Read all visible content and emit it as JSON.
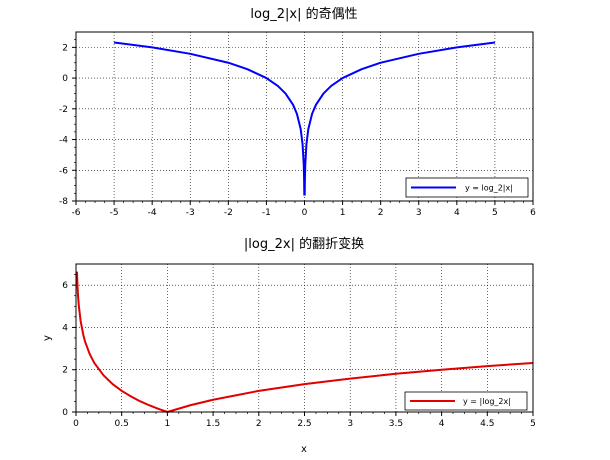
{
  "chart_data": [
    {
      "type": "line",
      "title": "log_2|x| 的奇偶性",
      "xlabel": "",
      "ylabel": "",
      "xlim": [
        -6,
        6
      ],
      "ylim": [
        -8,
        3
      ],
      "xticks": [
        -6,
        -5,
        -4,
        -3,
        -2,
        -1,
        0,
        1,
        2,
        3,
        4,
        5,
        6
      ],
      "xtick_labels": [
        "-6",
        "-5",
        "-4",
        "-3",
        "-2",
        "-1",
        "0",
        "1",
        "2",
        "3",
        "4",
        "5",
        "6"
      ],
      "yticks": [
        -8,
        -6,
        -4,
        -2,
        0,
        2
      ],
      "ytick_labels": [
        "-8",
        "-6",
        "-4",
        "-2",
        "0",
        "2"
      ],
      "grid": true,
      "legend_position": "bottom-right",
      "series": [
        {
          "name": "y = log_2|x|",
          "color": "#0000ff",
          "x": [
            -5,
            -4,
            -3,
            -2,
            -1.5,
            -1,
            -0.7,
            -0.5,
            -0.3,
            -0.2,
            -0.1,
            -0.05,
            -0.02,
            -0.01,
            -0.005,
            0.005,
            0.01,
            0.02,
            0.05,
            0.1,
            0.2,
            0.3,
            0.5,
            0.7,
            1,
            1.5,
            2,
            3,
            4,
            5
          ],
          "y": [
            2.32,
            2,
            1.58,
            1,
            0.58,
            0,
            -0.51,
            -1,
            -1.74,
            -2.32,
            -3.32,
            -4.32,
            -5.64,
            -6.64,
            -7.64,
            -7.64,
            -6.64,
            -5.64,
            -4.32,
            -3.32,
            -2.32,
            -1.74,
            -1,
            -0.51,
            0,
            0.58,
            1,
            1.58,
            2,
            2.32
          ]
        }
      ]
    },
    {
      "type": "line",
      "title": "|log_2x| 的翻折变换",
      "xlabel": "x",
      "ylabel": "y",
      "xlim": [
        0,
        5
      ],
      "ylim": [
        0,
        7
      ],
      "xticks": [
        0,
        0.5,
        1,
        1.5,
        2,
        2.5,
        3,
        3.5,
        4,
        4.5,
        5
      ],
      "xtick_labels": [
        "0",
        "0.5",
        "1",
        "1.5",
        "2",
        "2.5",
        "3",
        "3.5",
        "4",
        "4.5",
        "5"
      ],
      "yticks": [
        0,
        2,
        4,
        6
      ],
      "ytick_labels": [
        "0",
        "2",
        "4",
        "6"
      ],
      "grid": true,
      "legend_position": "bottom-right",
      "series": [
        {
          "name": "y = |log_2x|",
          "color": "#e00000",
          "x": [
            0.01,
            0.02,
            0.03,
            0.05,
            0.08,
            0.1,
            0.15,
            0.2,
            0.3,
            0.4,
            0.5,
            0.6,
            0.7,
            0.8,
            0.9,
            1,
            1.25,
            1.5,
            2,
            2.5,
            3,
            3.5,
            4,
            4.5,
            5
          ],
          "y": [
            6.64,
            5.64,
            5.06,
            4.32,
            3.64,
            3.32,
            2.74,
            2.32,
            1.74,
            1.32,
            1,
            0.74,
            0.51,
            0.32,
            0.15,
            0,
            0.32,
            0.58,
            1,
            1.32,
            1.58,
            1.81,
            2,
            2.17,
            2.32
          ]
        }
      ]
    }
  ]
}
